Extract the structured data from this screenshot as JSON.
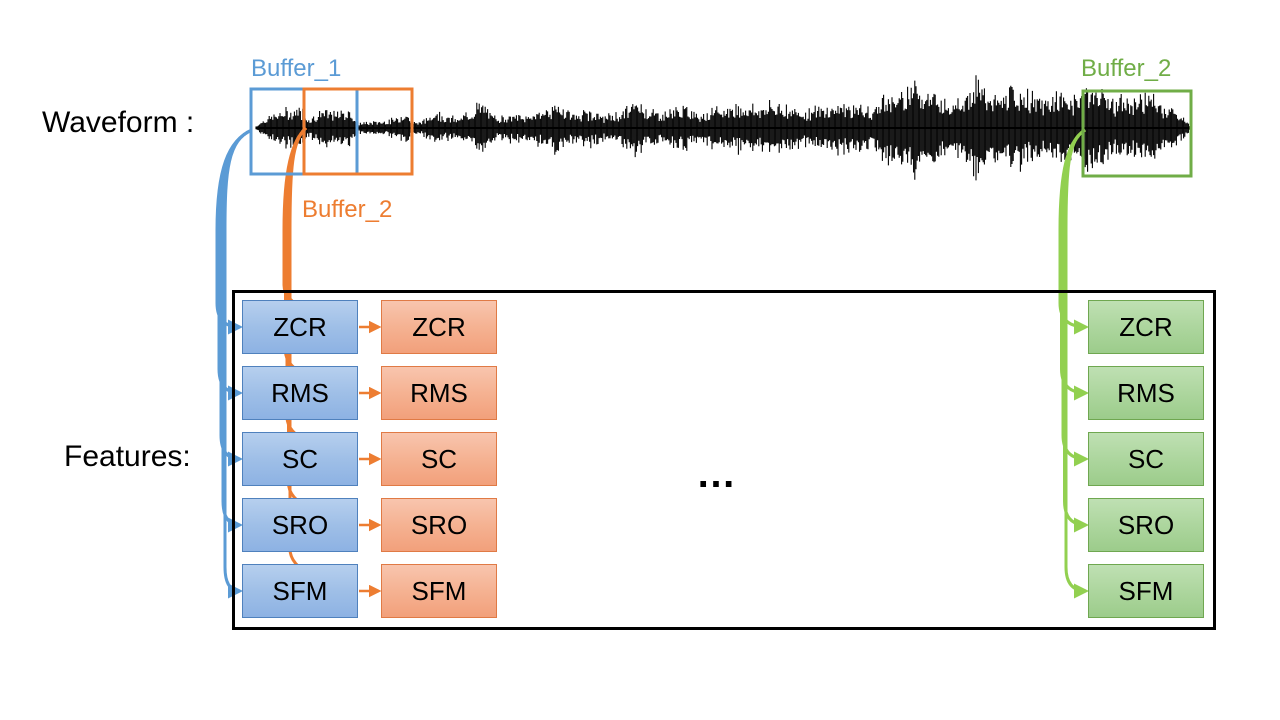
{
  "waveform_label": "Waveform :",
  "features_label": "Features:",
  "ellipsis": "…",
  "buffers": [
    {
      "id": "buffer-1",
      "label": "Buffer_1",
      "color": "#5b9bd5"
    },
    {
      "id": "buffer-2-orange",
      "label": "Buffer_2",
      "color": "#ed7d31"
    },
    {
      "id": "buffer-2-green",
      "label": "Buffer_2",
      "color": "#70ad47"
    }
  ],
  "feature_columns": [
    {
      "id": "blue",
      "features": [
        "ZCR",
        "RMS",
        "SC",
        "SRO",
        "SFM"
      ]
    },
    {
      "id": "orange",
      "features": [
        "ZCR",
        "RMS",
        "SC",
        "SRO",
        "SFM"
      ]
    },
    {
      "id": "green",
      "features": [
        "ZCR",
        "RMS",
        "SC",
        "SRO",
        "SFM"
      ]
    }
  ],
  "colors": {
    "blue_arrow": "#5b9bd5",
    "orange_arrow": "#ed7d31",
    "green_arrow": "#92d050",
    "waveform": "#000000"
  }
}
